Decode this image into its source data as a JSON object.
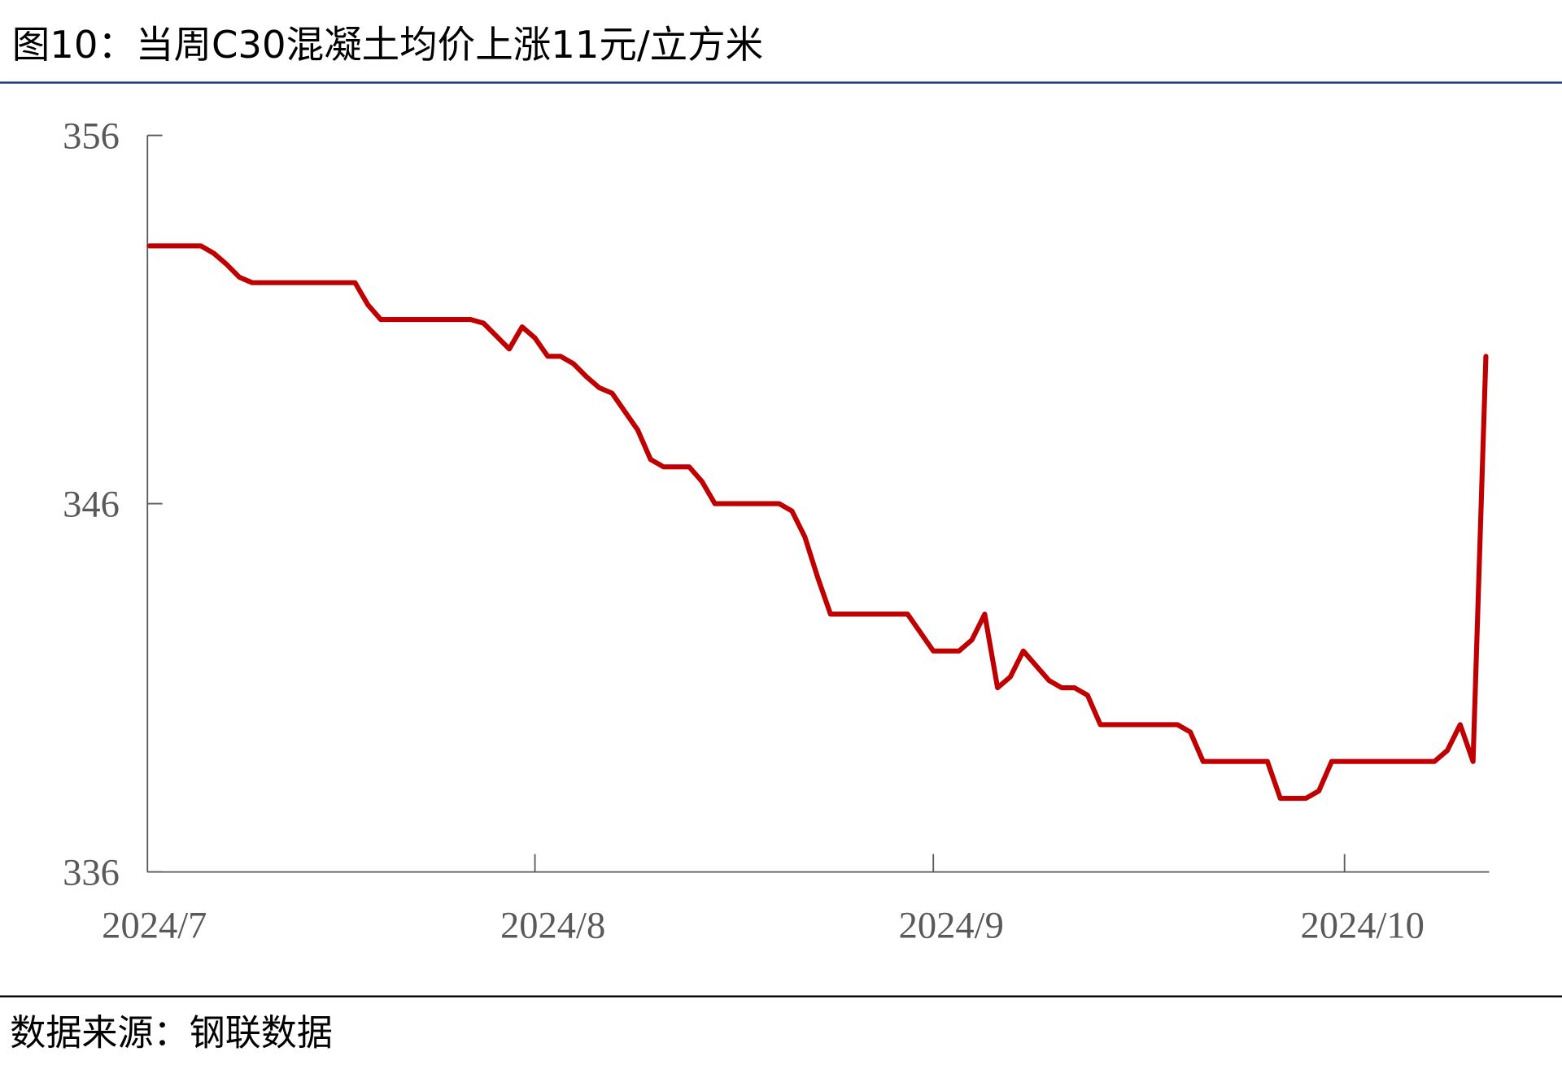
{
  "chart_data": {
    "type": "line",
    "title": "图10：当周C30混凝土均价上涨11元/立方米",
    "source": "数据来源：钢联数据",
    "categories": [
      "2024/7",
      null,
      null,
      null,
      null,
      null,
      null,
      null,
      null,
      null,
      null,
      null,
      null,
      null,
      null,
      null,
      null,
      null,
      null,
      null,
      null,
      null,
      null,
      null,
      null,
      null,
      null,
      null,
      null,
      null,
      "2024/8",
      null,
      null,
      null,
      null,
      null,
      null,
      null,
      null,
      null,
      null,
      null,
      null,
      null,
      null,
      null,
      null,
      null,
      null,
      null,
      null,
      null,
      null,
      null,
      null,
      null,
      null,
      null,
      null,
      null,
      null,
      "2024/9",
      null,
      null,
      null,
      null,
      null,
      null,
      null,
      null,
      null,
      null,
      null,
      null,
      null,
      null,
      null,
      null,
      null,
      null,
      null,
      null,
      null,
      null,
      null,
      null,
      null,
      null,
      null,
      null,
      null,
      null,
      null,
      "2024/10",
      null,
      null,
      null,
      null,
      null,
      null,
      null,
      null,
      null,
      null,
      null
    ],
    "series": [
      {
        "name": null,
        "color": "#c00000",
        "values": [
          353,
          353,
          353,
          353,
          353,
          352.8,
          352.5,
          352.15,
          352,
          352,
          352,
          352,
          352,
          352,
          352,
          352,
          352,
          351.4,
          351,
          351,
          351,
          351,
          351,
          351,
          351,
          351,
          350.9,
          350.55,
          350.2,
          350.8,
          350.5,
          350,
          350,
          349.8,
          349.45,
          349.15,
          349,
          348.5,
          348,
          347.2,
          347,
          347,
          347,
          346.6,
          346,
          346,
          346,
          346,
          346,
          346,
          345.8,
          345.1,
          344,
          343,
          343,
          343,
          343,
          343,
          343,
          343,
          342.5,
          342,
          342,
          342,
          342.3,
          343,
          341,
          341.3,
          342,
          341.6,
          341.2,
          341,
          341,
          340.8,
          340,
          340,
          340,
          340,
          340,
          340,
          340,
          339.8,
          339,
          339,
          339,
          339,
          339,
          339,
          338,
          338,
          338,
          338.2,
          339,
          339,
          339,
          339,
          339,
          339,
          339,
          339,
          339,
          339.3,
          340,
          339,
          350
        ]
      }
    ],
    "ylim": [
      336,
      356
    ],
    "yticks": [
      336,
      346,
      356
    ]
  }
}
